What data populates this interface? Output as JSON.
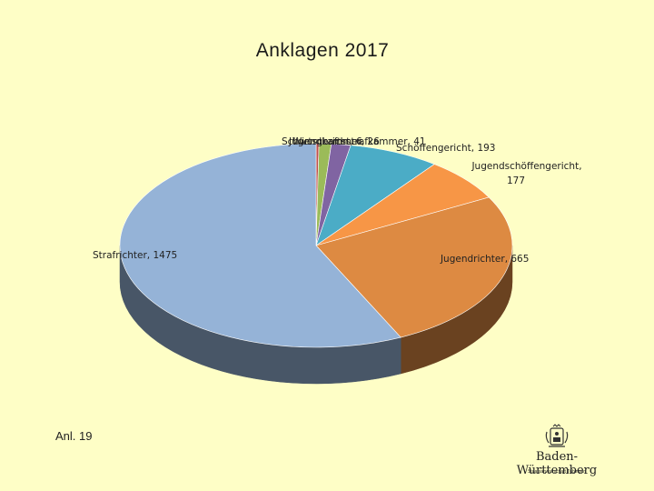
{
  "title": "Anklagen 2017",
  "slide_label": "Anl. 19",
  "logo": {
    "name": "Baden-Württemberg",
    "subtitle": "Staatsanwaltschaft Tübingen"
  },
  "chart_data": {
    "type": "pie",
    "title": "Anklagen 2017",
    "start_label": "Schwurgericht",
    "slices": [
      {
        "name": "Schwurgericht",
        "value": 6,
        "label": "",
        "color": "#c0504d"
      },
      {
        "name": "Jugendkammer",
        "value": 26,
        "label": "",
        "color": "#9bbb59"
      },
      {
        "name": "Wirtschaftsstrafkammer",
        "value": 41,
        "label": "",
        "color": "#8064a2"
      },
      {
        "name": "Schöffengericht",
        "value": 193,
        "label": "Schöffengericht, 193",
        "color": "#4bacc6"
      },
      {
        "name": "Jugendschöffengericht",
        "value": 177,
        "label": "Jugendschöffengericht, 177",
        "color": "#f79646"
      },
      {
        "name": "Jugendrichter",
        "value": 665,
        "label": "Jugendrichter, 665",
        "color": "#dd8a42"
      },
      {
        "name": "Strafrichter",
        "value": 1475,
        "label": "Strafrichter, 1475",
        "color": "#95b3d7"
      }
    ],
    "overlap_label": "Schwurgericht, 6 Jugendkammer, 26 Wirtschaftsstrafkammer, 41"
  }
}
